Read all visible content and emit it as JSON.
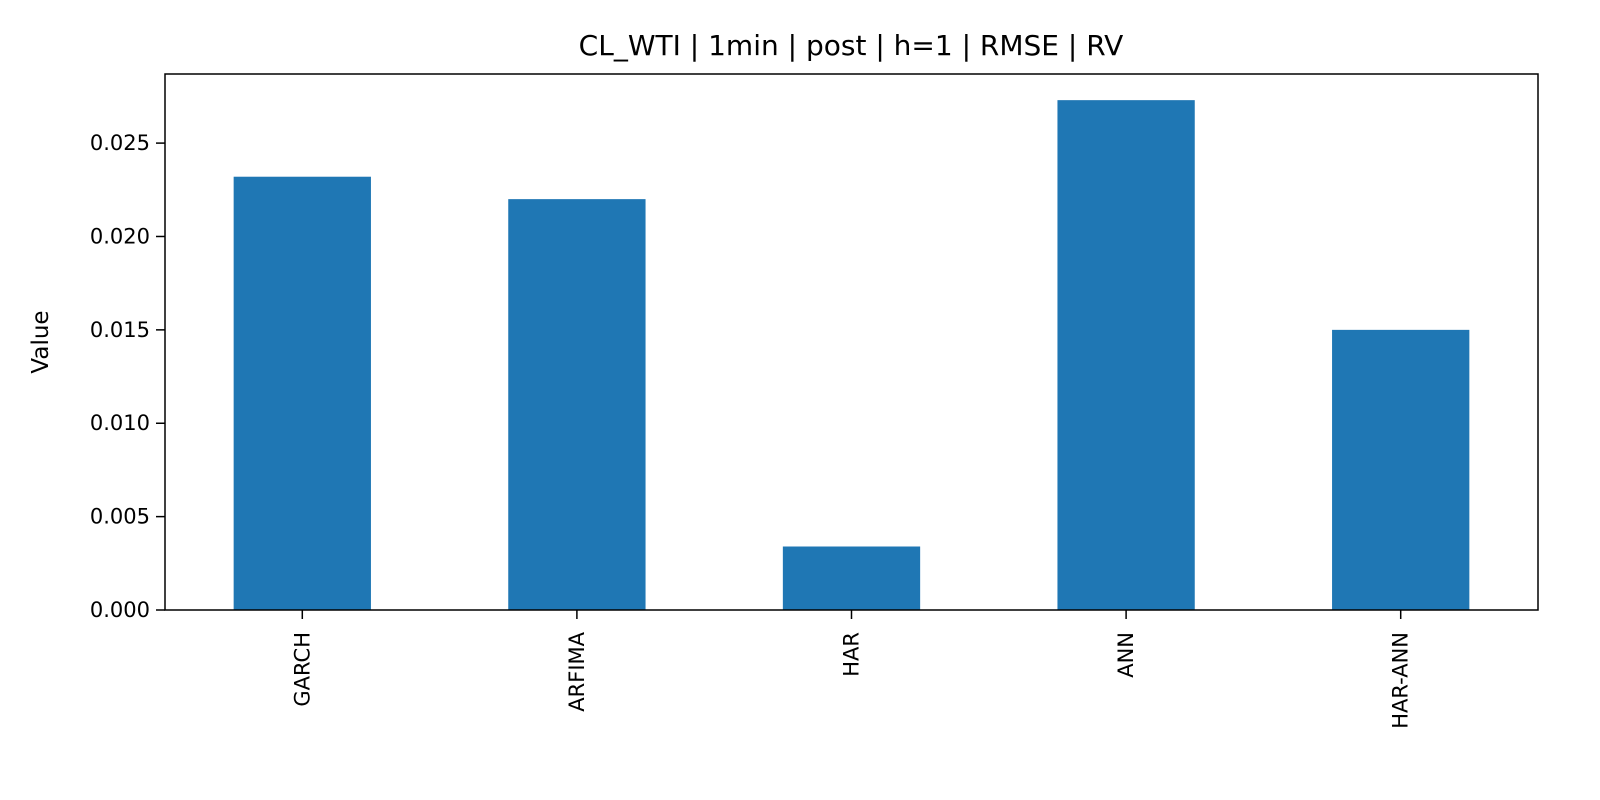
{
  "chart_data": {
    "type": "bar",
    "title": "CL_WTI | 1min | post | h=1 | RMSE | RV",
    "xlabel": "",
    "ylabel": "Value",
    "categories": [
      "GARCH",
      "ARFIMA",
      "HAR",
      "ANN",
      "HAR-ANN"
    ],
    "values": [
      0.0232,
      0.022,
      0.0034,
      0.0273,
      0.015
    ],
    "ylim": [
      0,
      0.0287
    ],
    "yticks": [
      "0.000",
      "0.005",
      "0.010",
      "0.015",
      "0.020",
      "0.025"
    ],
    "ytick_values": [
      0,
      0.005,
      0.01,
      0.015,
      0.02,
      0.025
    ],
    "bar_color": "#1f77b4",
    "grid": false,
    "legend": "none"
  }
}
